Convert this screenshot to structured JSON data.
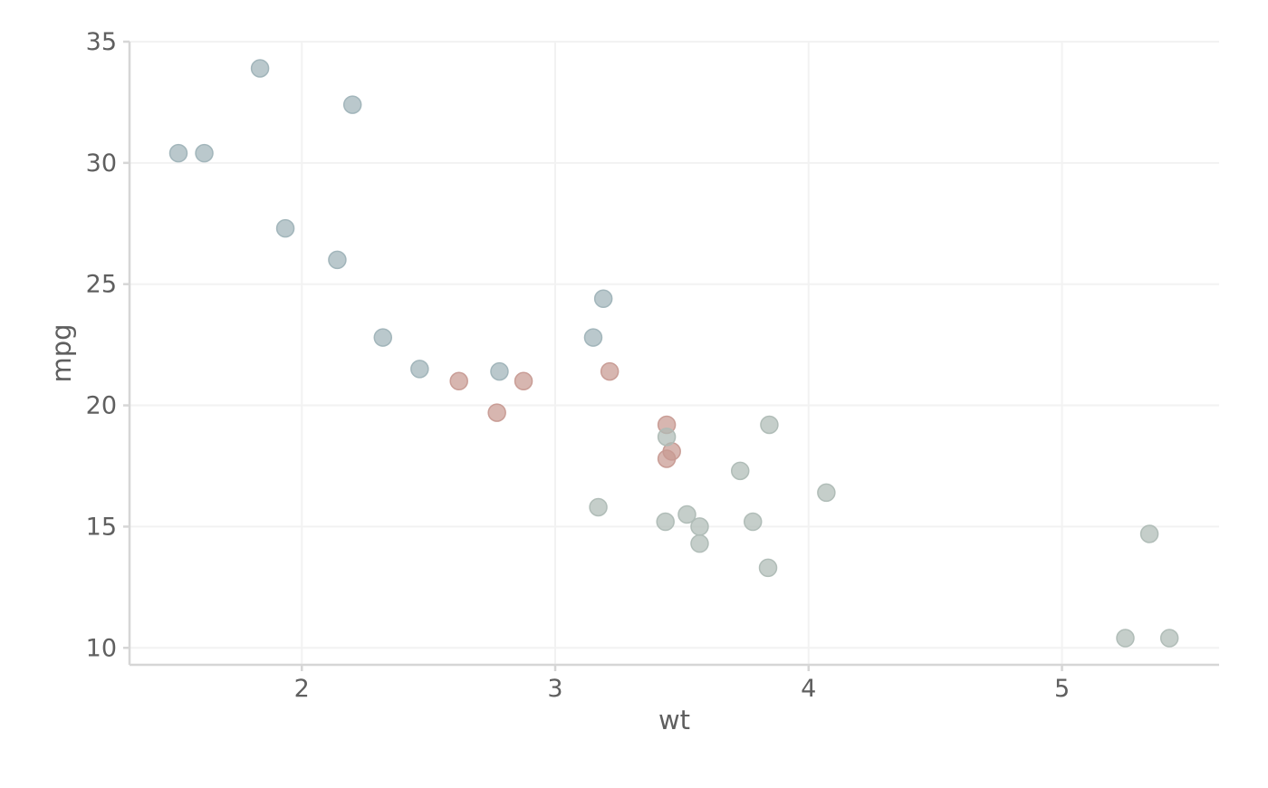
{
  "chart_data": {
    "type": "scatter",
    "title": "",
    "xlabel": "wt",
    "ylabel": "mpg",
    "xlim": [
      1.32,
      5.62
    ],
    "ylim": [
      9.3,
      35.0
    ],
    "x_ticks": [
      2,
      3,
      4,
      5
    ],
    "y_ticks": [
      10,
      15,
      20,
      25,
      30,
      35
    ],
    "grid": true,
    "legend": "none",
    "colors": {
      "group_a": "#9fb3b8",
      "group_b": "#c79a92",
      "group_c": "#aebbb5",
      "grid": "#f2f2f2",
      "axis": "#d6d6d6",
      "text": "#5f5f5f"
    },
    "points": [
      {
        "x": 1.513,
        "y": 30.4,
        "group": "group_a"
      },
      {
        "x": 1.615,
        "y": 30.4,
        "group": "group_a"
      },
      {
        "x": 1.835,
        "y": 33.9,
        "group": "group_a"
      },
      {
        "x": 1.935,
        "y": 27.3,
        "group": "group_a"
      },
      {
        "x": 2.14,
        "y": 26.0,
        "group": "group_a"
      },
      {
        "x": 2.2,
        "y": 32.4,
        "group": "group_a"
      },
      {
        "x": 2.32,
        "y": 22.8,
        "group": "group_a"
      },
      {
        "x": 2.465,
        "y": 21.5,
        "group": "group_a"
      },
      {
        "x": 2.78,
        "y": 21.4,
        "group": "group_a"
      },
      {
        "x": 3.15,
        "y": 22.8,
        "group": "group_a"
      },
      {
        "x": 3.19,
        "y": 24.4,
        "group": "group_a"
      },
      {
        "x": 2.62,
        "y": 21.0,
        "group": "group_b"
      },
      {
        "x": 2.77,
        "y": 19.7,
        "group": "group_b"
      },
      {
        "x": 2.875,
        "y": 21.0,
        "group": "group_b"
      },
      {
        "x": 3.215,
        "y": 21.4,
        "group": "group_b"
      },
      {
        "x": 3.44,
        "y": 19.2,
        "group": "group_b"
      },
      {
        "x": 3.44,
        "y": 17.8,
        "group": "group_b"
      },
      {
        "x": 3.46,
        "y": 18.1,
        "group": "group_b"
      },
      {
        "x": 3.44,
        "y": 18.7,
        "group": "group_c"
      },
      {
        "x": 3.17,
        "y": 15.8,
        "group": "group_c"
      },
      {
        "x": 3.435,
        "y": 15.2,
        "group": "group_c"
      },
      {
        "x": 3.52,
        "y": 15.5,
        "group": "group_c"
      },
      {
        "x": 3.57,
        "y": 15.0,
        "group": "group_c"
      },
      {
        "x": 3.57,
        "y": 14.3,
        "group": "group_c"
      },
      {
        "x": 3.73,
        "y": 17.3,
        "group": "group_c"
      },
      {
        "x": 3.78,
        "y": 15.2,
        "group": "group_c"
      },
      {
        "x": 3.84,
        "y": 13.3,
        "group": "group_c"
      },
      {
        "x": 3.845,
        "y": 19.2,
        "group": "group_c"
      },
      {
        "x": 4.07,
        "y": 16.4,
        "group": "group_c"
      },
      {
        "x": 5.25,
        "y": 10.4,
        "group": "group_c"
      },
      {
        "x": 5.345,
        "y": 14.7,
        "group": "group_c"
      },
      {
        "x": 5.424,
        "y": 10.4,
        "group": "group_c"
      }
    ]
  }
}
